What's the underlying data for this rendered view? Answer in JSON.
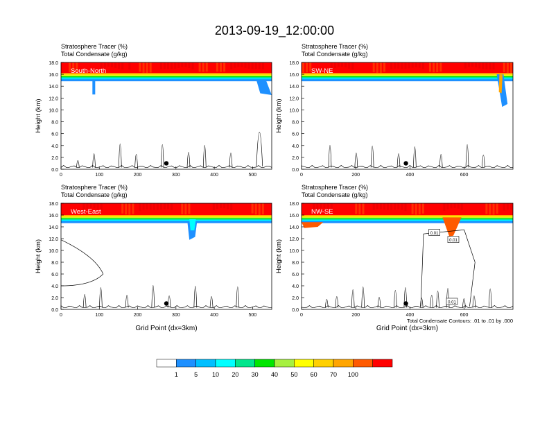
{
  "title": "2013-09-19_12:00:00",
  "field_labels": [
    "Stratosphere Tracer   (%)",
    "Total Condensate   (g/kg)"
  ],
  "contour_note": "Total Condensate Contours: .01 to .01 by .000",
  "colors": {
    "white": "#ffffff",
    "c1": "#1e90ff",
    "c5": "#00bfff",
    "c10": "#00ffff",
    "c20": "#00e68c",
    "c30": "#00e600",
    "c40": "#a6f040",
    "c50": "#ffff00",
    "c60": "#ffd000",
    "c70": "#ffa500",
    "c80": "#ff5a00",
    "c100": "#ff0000"
  },
  "chart_data": [
    {
      "type": "heatmap",
      "panel": "South-North",
      "ylabel": "Height (km)",
      "xlabel": "",
      "ylim": [
        0,
        18
      ],
      "xlim": [
        0,
        550
      ],
      "xticks": [
        "0",
        "100",
        "200",
        "300",
        "400",
        "500"
      ],
      "yticks": [
        "0.0",
        "2.0",
        "4.0",
        "6.0",
        "8.0",
        "10.0",
        "12.0",
        "14.0",
        "16.0",
        "18.0"
      ],
      "tropopause_km": 15.0,
      "marker": {
        "x": 275,
        "y": 1.0
      }
    },
    {
      "type": "heatmap",
      "panel": "SW-NE",
      "ylabel": "Height (km)",
      "xlabel": "",
      "ylim": [
        0,
        18
      ],
      "xlim": [
        0,
        780
      ],
      "xticks": [
        "0",
        "200",
        "400",
        "600"
      ],
      "yticks": [
        "0.0",
        "2.0",
        "4.0",
        "6.0",
        "8.0",
        "10.0",
        "12.0",
        "14.0",
        "16.0",
        "18.0"
      ],
      "tropopause_km": 15.0,
      "marker": {
        "x": 385,
        "y": 1.0
      }
    },
    {
      "type": "heatmap",
      "panel": "West-East",
      "ylabel": "Height (km)",
      "xlabel": "Grid Point (dx=3km)",
      "ylim": [
        0,
        18
      ],
      "xlim": [
        0,
        550
      ],
      "xticks": [
        "0",
        "100",
        "200",
        "300",
        "400",
        "500"
      ],
      "yticks": [
        "0.0",
        "2.0",
        "4.0",
        "6.0",
        "8.0",
        "10.0",
        "12.0",
        "14.0",
        "16.0",
        "18.0"
      ],
      "tropopause_km": 14.8,
      "marker": {
        "x": 275,
        "y": 1.0
      }
    },
    {
      "type": "heatmap",
      "panel": "NW-SE",
      "ylabel": "Height (km)",
      "xlabel": "Grid Point (dx=3km)",
      "ylim": [
        0,
        18
      ],
      "xlim": [
        0,
        780
      ],
      "xticks": [
        "0",
        "200",
        "400",
        "600"
      ],
      "yticks": [
        "0.0",
        "2.0",
        "4.0",
        "6.0",
        "8.0",
        "10.0",
        "12.0",
        "14.0",
        "16.0",
        "18.0"
      ],
      "tropopause_km": 14.8,
      "marker": {
        "x": 385,
        "y": 1.0
      },
      "contour_labels": [
        "0.01",
        "0.01",
        "0.01"
      ]
    }
  ],
  "colorbar": {
    "labels": [
      "1",
      "5",
      "10",
      "20",
      "30",
      "40",
      "50",
      "60",
      "70",
      "100"
    ],
    "bins": [
      "#ffffff",
      "#1e90ff",
      "#00bfff",
      "#00ffff",
      "#00e68c",
      "#00e600",
      "#a6f040",
      "#ffff00",
      "#ffd000",
      "#ffa500",
      "#ff5a00",
      "#ff0000"
    ]
  }
}
